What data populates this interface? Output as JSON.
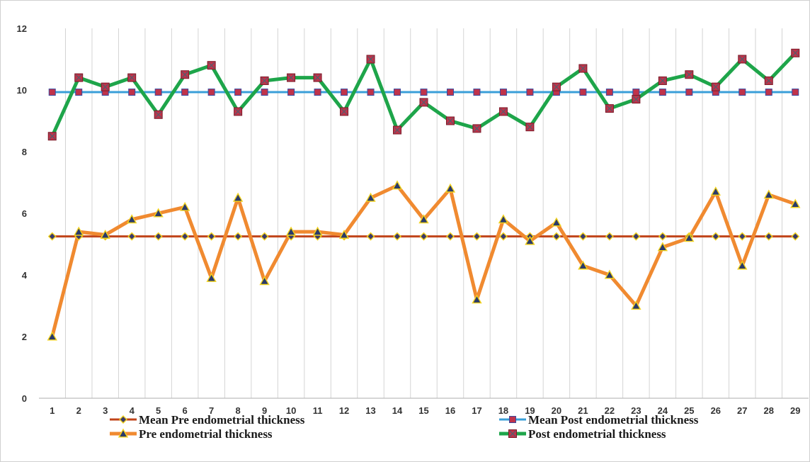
{
  "chart_data": {
    "type": "line",
    "title": "",
    "xlabel": "",
    "ylabel": "",
    "x": [
      1,
      2,
      3,
      4,
      5,
      6,
      7,
      8,
      9,
      10,
      11,
      12,
      13,
      14,
      15,
      16,
      17,
      18,
      19,
      20,
      21,
      22,
      23,
      24,
      25,
      26,
      27,
      28,
      29
    ],
    "ylim": [
      0,
      12
    ],
    "yticks": [
      0,
      2,
      4,
      6,
      8,
      10,
      12
    ],
    "grid": "vertical",
    "legend_position": "bottom",
    "series": [
      {
        "name": "Mean Pre  endometrial thickness",
        "color": "#c0441a",
        "marker": "diamond",
        "marker_color": "#3a3a6a",
        "values": [
          5.25,
          5.25,
          5.25,
          5.25,
          5.25,
          5.25,
          5.25,
          5.25,
          5.25,
          5.25,
          5.25,
          5.25,
          5.25,
          5.25,
          5.25,
          5.25,
          5.25,
          5.25,
          5.25,
          5.25,
          5.25,
          5.25,
          5.25,
          5.25,
          5.25,
          5.25,
          5.25,
          5.25,
          5.25
        ]
      },
      {
        "name": "Mean Post  endometrial thickness",
        "color": "#3a9fd8",
        "marker": "square",
        "marker_color": "#c0334a",
        "values": [
          9.93,
          9.93,
          9.93,
          9.93,
          9.93,
          9.93,
          9.93,
          9.93,
          9.93,
          9.93,
          9.93,
          9.93,
          9.93,
          9.93,
          9.93,
          9.93,
          9.93,
          9.93,
          9.93,
          9.93,
          9.93,
          9.93,
          9.93,
          9.93,
          9.93,
          9.93,
          9.93,
          9.93,
          9.93
        ]
      },
      {
        "name": "Pre endometrial thickness",
        "color": "#f08a30",
        "marker": "triangle",
        "marker_color": "#2a3a6a",
        "values": [
          2.0,
          5.4,
          5.3,
          5.8,
          6.0,
          6.2,
          3.9,
          6.5,
          3.8,
          5.4,
          5.4,
          5.3,
          6.5,
          6.9,
          5.8,
          6.8,
          3.2,
          5.8,
          5.1,
          5.7,
          4.3,
          4.0,
          3.0,
          4.9,
          5.2,
          6.7,
          4.3,
          6.6,
          6.3
        ]
      },
      {
        "name": "Post endometrial thickness",
        "color": "#1ea54a",
        "marker": "square-x",
        "marker_color": "#c0334a",
        "values": [
          8.5,
          10.4,
          10.1,
          10.4,
          9.2,
          10.5,
          10.8,
          9.3,
          10.3,
          10.4,
          10.4,
          9.3,
          11.0,
          8.7,
          9.6,
          9.0,
          8.75,
          9.3,
          8.8,
          10.1,
          10.7,
          9.4,
          9.7,
          10.3,
          10.5,
          10.1,
          11.0,
          10.3,
          11.2
        ]
      }
    ]
  }
}
